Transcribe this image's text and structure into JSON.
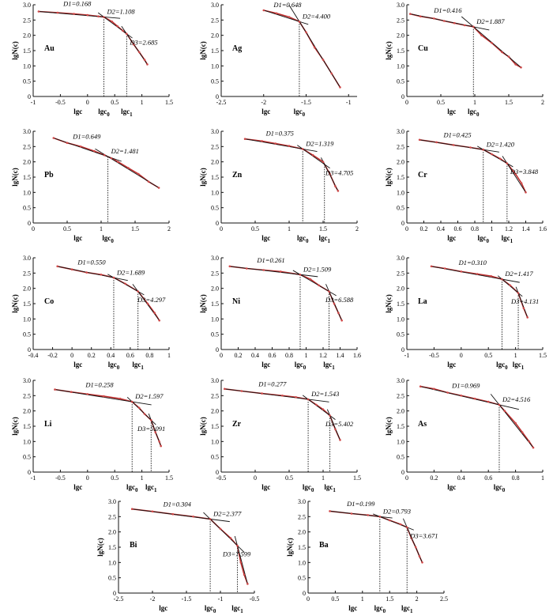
{
  "common": {
    "xlabel": "lgc",
    "ylabel": "lgN(c)",
    "x0_label": "lgc",
    "x0_sub": "0",
    "x1_label": "lgc",
    "x1_sub": "1",
    "colors": {
      "data": "#d04848",
      "fit": "#c03030",
      "segment": "#111111",
      "axis": "#111111"
    }
  },
  "chart_data": [
    {
      "type": "scatter",
      "element": "Au",
      "xlim": [
        -1,
        1.5
      ],
      "xticks": [
        "-1",
        "-0.5",
        "0",
        "0.5",
        "1",
        "1.5"
      ],
      "ylim": [
        0,
        3
      ],
      "yticks": [
        "0",
        "0.5",
        "1.0",
        "1.5",
        "2.0",
        "2.5",
        "3.0"
      ],
      "breaks": [
        0.3,
        0.72
      ],
      "D": [
        {
          "label": "D1=0.168",
          "value": 0.168
        },
        {
          "label": "D2=1.108",
          "value": 1.108
        },
        {
          "label": "D3=2.685",
          "value": 2.685
        }
      ],
      "points": [
        [
          -0.9,
          2.78
        ],
        [
          -0.55,
          2.74
        ],
        [
          -0.25,
          2.7
        ],
        [
          0.0,
          2.66
        ],
        [
          0.2,
          2.62
        ],
        [
          0.3,
          2.6
        ],
        [
          0.45,
          2.45
        ],
        [
          0.55,
          2.3
        ],
        [
          0.65,
          2.15
        ],
        [
          0.72,
          2.05
        ],
        [
          0.85,
          1.7
        ],
        [
          0.95,
          1.45
        ],
        [
          1.05,
          1.2
        ],
        [
          1.1,
          1.05
        ]
      ]
    },
    {
      "type": "scatter",
      "element": "Ag",
      "xlim": [
        -2.5,
        -0.9
      ],
      "xticks": [
        "-2.5",
        "-2",
        "-1.5",
        "-1"
      ],
      "ylim": [
        0,
        3
      ],
      "yticks": [
        "0",
        "0.5",
        "1.0",
        "1.5",
        "2.0",
        "2.5",
        "3.0"
      ],
      "breaks": [
        -1.58
      ],
      "D": [
        {
          "label": "D1=0.648",
          "value": 0.648
        },
        {
          "label": "D2=4.400",
          "value": 4.4
        }
      ],
      "points": [
        [
          -2.0,
          2.82
        ],
        [
          -1.85,
          2.72
        ],
        [
          -1.7,
          2.6
        ],
        [
          -1.58,
          2.45
        ],
        [
          -1.5,
          2.1
        ],
        [
          -1.4,
          1.6
        ],
        [
          -1.3,
          1.2
        ],
        [
          -1.2,
          0.75
        ],
        [
          -1.1,
          0.3
        ]
      ]
    },
    {
      "type": "scatter",
      "element": "Cu",
      "xlim": [
        0,
        2
      ],
      "xticks": [
        "0",
        "0.5",
        "1",
        "1.5",
        "2"
      ],
      "ylim": [
        0,
        3
      ],
      "yticks": [
        "0",
        "0.5",
        "1.0",
        "1.5",
        "2.0",
        "2.5",
        "3.0"
      ],
      "breaks": [
        0.98
      ],
      "D": [
        {
          "label": "D1=0.416",
          "value": 0.416
        },
        {
          "label": "D2=1.887",
          "value": 1.887
        }
      ],
      "points": [
        [
          0.05,
          2.7
        ],
        [
          0.2,
          2.62
        ],
        [
          0.4,
          2.55
        ],
        [
          0.55,
          2.47
        ],
        [
          0.7,
          2.4
        ],
        [
          0.85,
          2.33
        ],
        [
          0.98,
          2.28
        ],
        [
          1.1,
          2.0
        ],
        [
          1.25,
          1.75
        ],
        [
          1.4,
          1.45
        ],
        [
          1.5,
          1.3
        ],
        [
          1.6,
          1.05
        ],
        [
          1.68,
          0.95
        ]
      ]
    },
    {
      "type": "scatter",
      "element": "Pb",
      "xlim": [
        0,
        2
      ],
      "xticks": [
        "0",
        "0.5",
        "1",
        "1.5",
        "2"
      ],
      "ylim": [
        0,
        3
      ],
      "yticks": [
        "0",
        "0.5",
        "1.0",
        "1.5",
        "2.0",
        "2.5",
        "3.0"
      ],
      "breaks": [
        1.1
      ],
      "D": [
        {
          "label": "D1=0.649",
          "value": 0.649
        },
        {
          "label": "D2=1.481",
          "value": 1.481
        }
      ],
      "points": [
        [
          0.3,
          2.78
        ],
        [
          0.5,
          2.62
        ],
        [
          0.7,
          2.5
        ],
        [
          0.9,
          2.35
        ],
        [
          1.05,
          2.22
        ],
        [
          1.15,
          2.12
        ],
        [
          1.25,
          2.0
        ],
        [
          1.4,
          1.8
        ],
        [
          1.55,
          1.6
        ],
        [
          1.7,
          1.35
        ],
        [
          1.85,
          1.15
        ]
      ]
    },
    {
      "type": "scatter",
      "element": "Zn",
      "xlim": [
        0,
        2
      ],
      "xticks": [
        "0",
        "0.5",
        "1",
        "1.5",
        "2"
      ],
      "ylim": [
        0,
        3
      ],
      "yticks": [
        "0",
        "0.5",
        "1.0",
        "1.5",
        "2.0",
        "2.5",
        "3.0"
      ],
      "breaks": [
        1.2,
        1.52
      ],
      "D": [
        {
          "label": "D1=0.375",
          "value": 0.375
        },
        {
          "label": "D2=1.319",
          "value": 1.319
        },
        {
          "label": "D3=4.705",
          "value": 4.705
        }
      ],
      "points": [
        [
          0.35,
          2.75
        ],
        [
          0.6,
          2.68
        ],
        [
          0.8,
          2.6
        ],
        [
          1.0,
          2.52
        ],
        [
          1.2,
          2.42
        ],
        [
          1.35,
          2.22
        ],
        [
          1.5,
          2.0
        ],
        [
          1.6,
          1.6
        ],
        [
          1.68,
          1.2
        ],
        [
          1.72,
          1.05
        ]
      ]
    },
    {
      "type": "scatter",
      "element": "Cr",
      "xlim": [
        0,
        1.6
      ],
      "xticks": [
        "0",
        "0.2",
        "0.4",
        "0.6",
        "0.8",
        "1",
        "1.2",
        "1.4",
        "1.6"
      ],
      "ylim": [
        0,
        3
      ],
      "yticks": [
        "0",
        "0.5",
        "1.0",
        "1.5",
        "2.0",
        "2.5",
        "3.0"
      ],
      "breaks": [
        0.9,
        1.18
      ],
      "D": [
        {
          "label": "D1=0.425",
          "value": 0.425
        },
        {
          "label": "D2=1.420",
          "value": 1.42
        },
        {
          "label": "D3=3.848",
          "value": 3.848
        }
      ],
      "points": [
        [
          0.15,
          2.72
        ],
        [
          0.35,
          2.64
        ],
        [
          0.55,
          2.55
        ],
        [
          0.75,
          2.47
        ],
        [
          0.9,
          2.4
        ],
        [
          1.0,
          2.25
        ],
        [
          1.1,
          2.1
        ],
        [
          1.18,
          1.95
        ],
        [
          1.28,
          1.6
        ],
        [
          1.35,
          1.3
        ],
        [
          1.4,
          1.0
        ]
      ]
    },
    {
      "type": "scatter",
      "element": "Co",
      "xlim": [
        -0.4,
        1
      ],
      "xticks": [
        "-0.4",
        "-0.2",
        "0",
        "0.2",
        "0.4",
        "0.6",
        "0.8",
        "1"
      ],
      "ylim": [
        0,
        3
      ],
      "yticks": [
        "0",
        "0.5",
        "1.0",
        "1.5",
        "2.0",
        "2.5",
        "3.0"
      ],
      "breaks": [
        0.43,
        0.68
      ],
      "D": [
        {
          "label": "D1=0.550",
          "value": 0.55
        },
        {
          "label": "D2=1.689",
          "value": 1.689
        },
        {
          "label": "D3=4.297",
          "value": 4.297
        }
      ],
      "points": [
        [
          -0.15,
          2.72
        ],
        [
          0.0,
          2.62
        ],
        [
          0.15,
          2.52
        ],
        [
          0.3,
          2.45
        ],
        [
          0.43,
          2.35
        ],
        [
          0.55,
          2.15
        ],
        [
          0.68,
          1.9
        ],
        [
          0.78,
          1.5
        ],
        [
          0.85,
          1.2
        ],
        [
          0.9,
          0.95
        ]
      ]
    },
    {
      "type": "scatter",
      "element": "Ni",
      "xlim": [
        0,
        1.6
      ],
      "xticks": [
        "0",
        "0.2",
        "0.4",
        "0.6",
        "0.8",
        "1",
        "1.2",
        "1.4",
        "1.6"
      ],
      "ylim": [
        0,
        3
      ],
      "yticks": [
        "0",
        "0.5",
        "1.0",
        "1.5",
        "2.0",
        "2.5",
        "3.0"
      ],
      "breaks": [
        0.93,
        1.27
      ],
      "D": [
        {
          "label": "D1=0.261",
          "value": 0.261
        },
        {
          "label": "D2=1.509",
          "value": 1.509
        },
        {
          "label": "D3=6.588",
          "value": 6.588
        }
      ],
      "points": [
        [
          0.1,
          2.72
        ],
        [
          0.3,
          2.65
        ],
        [
          0.5,
          2.6
        ],
        [
          0.7,
          2.55
        ],
        [
          0.93,
          2.45
        ],
        [
          1.05,
          2.3
        ],
        [
          1.15,
          2.1
        ],
        [
          1.27,
          1.9
        ],
        [
          1.33,
          1.5
        ],
        [
          1.38,
          1.2
        ],
        [
          1.42,
          0.95
        ]
      ]
    },
    {
      "type": "scatter",
      "element": "La",
      "xlim": [
        -1,
        1.5
      ],
      "xticks": [
        "-1",
        "-0.5",
        "0",
        "0.5",
        "1",
        "1.5"
      ],
      "ylim": [
        0,
        3
      ],
      "yticks": [
        "0",
        "0.5",
        "1.0",
        "1.5",
        "2.0",
        "2.5",
        "3.0"
      ],
      "breaks": [
        0.75,
        1.05
      ],
      "D": [
        {
          "label": "D1=0.310",
          "value": 0.31
        },
        {
          "label": "D2=1.417",
          "value": 1.417
        },
        {
          "label": "D3=4.131",
          "value": 4.131
        }
      ],
      "points": [
        [
          -0.55,
          2.72
        ],
        [
          -0.3,
          2.65
        ],
        [
          0.0,
          2.55
        ],
        [
          0.3,
          2.47
        ],
        [
          0.55,
          2.4
        ],
        [
          0.75,
          2.3
        ],
        [
          0.9,
          2.1
        ],
        [
          1.05,
          1.85
        ],
        [
          1.15,
          1.35
        ],
        [
          1.22,
          1.05
        ]
      ]
    },
    {
      "type": "scatter",
      "element": "Li",
      "xlim": [
        -1,
        1.5
      ],
      "xticks": [
        "-1",
        "-0.5",
        "0",
        "0.5",
        "1",
        "1.5"
      ],
      "ylim": [
        0,
        3
      ],
      "yticks": [
        "0",
        "0.5",
        "1.0",
        "1.5",
        "2.0",
        "2.5",
        "3.0"
      ],
      "breaks": [
        0.82,
        1.17
      ],
      "D": [
        {
          "label": "D1=0.258",
          "value": 0.258
        },
        {
          "label": "D2=1.597",
          "value": 1.597
        },
        {
          "label": "D3=5.091",
          "value": 5.091
        }
      ],
      "points": [
        [
          -0.6,
          2.7
        ],
        [
          -0.3,
          2.62
        ],
        [
          0.0,
          2.55
        ],
        [
          0.3,
          2.48
        ],
        [
          0.6,
          2.4
        ],
        [
          0.82,
          2.3
        ],
        [
          0.95,
          2.1
        ],
        [
          1.05,
          1.9
        ],
        [
          1.17,
          1.7
        ],
        [
          1.25,
          1.3
        ],
        [
          1.32,
          1.0
        ],
        [
          1.35,
          0.85
        ]
      ]
    },
    {
      "type": "scatter",
      "element": "Zr",
      "xlim": [
        -0.5,
        1.5
      ],
      "xticks": [
        "-0.5",
        "0",
        "0.5",
        "1",
        "1.5"
      ],
      "ylim": [
        0,
        3
      ],
      "yticks": [
        "0",
        "0.5",
        "1.0",
        "1.5",
        "2.0",
        "2.5",
        "3.0"
      ],
      "breaks": [
        0.78,
        1.1
      ],
      "D": [
        {
          "label": "D1=0.277",
          "value": 0.277
        },
        {
          "label": "D2=1.543",
          "value": 1.543
        },
        {
          "label": "D3=5.402",
          "value": 5.402
        }
      ],
      "points": [
        [
          -0.45,
          2.72
        ],
        [
          -0.2,
          2.65
        ],
        [
          0.1,
          2.57
        ],
        [
          0.4,
          2.5
        ],
        [
          0.6,
          2.45
        ],
        [
          0.78,
          2.38
        ],
        [
          0.9,
          2.2
        ],
        [
          1.0,
          2.05
        ],
        [
          1.1,
          1.85
        ],
        [
          1.18,
          1.4
        ],
        [
          1.25,
          1.05
        ]
      ]
    },
    {
      "type": "scatter",
      "element": "As",
      "xlim": [
        0,
        1
      ],
      "xticks": [
        "0",
        "0.2",
        "0.4",
        "0.6",
        "0.8",
        "1"
      ],
      "ylim": [
        0,
        3
      ],
      "yticks": [
        "0",
        "0.5",
        "1.0",
        "1.5",
        "2.0",
        "2.5",
        "3.0"
      ],
      "breaks": [
        0.68
      ],
      "D": [
        {
          "label": "D1=0.969",
          "value": 0.969
        },
        {
          "label": "D2=4.516",
          "value": 4.516
        }
      ],
      "points": [
        [
          0.1,
          2.8
        ],
        [
          0.2,
          2.72
        ],
        [
          0.3,
          2.6
        ],
        [
          0.4,
          2.5
        ],
        [
          0.5,
          2.4
        ],
        [
          0.6,
          2.3
        ],
        [
          0.68,
          2.2
        ],
        [
          0.72,
          2.0
        ],
        [
          0.8,
          1.6
        ],
        [
          0.85,
          1.3
        ],
        [
          0.9,
          1.0
        ],
        [
          0.93,
          0.8
        ]
      ]
    },
    {
      "type": "scatter",
      "element": "Bi",
      "xlim": [
        -2.5,
        -0.5
      ],
      "xticks": [
        "-2.5",
        "-2",
        "-1.5",
        "-1",
        "-0.5"
      ],
      "ylim": [
        0,
        3
      ],
      "yticks": [
        "0",
        "0.5",
        "1.0",
        "1.5",
        "2.0",
        "2.5",
        "3.0"
      ],
      "breaks": [
        -1.15,
        -0.75
      ],
      "D": [
        {
          "label": "D1=0.304",
          "value": 0.304
        },
        {
          "label": "D2=2.377",
          "value": 2.377
        },
        {
          "label": "D3=7.599",
          "value": 7.599
        }
      ],
      "points": [
        [
          -2.3,
          2.75
        ],
        [
          -2.0,
          2.67
        ],
        [
          -1.7,
          2.58
        ],
        [
          -1.4,
          2.5
        ],
        [
          -1.15,
          2.42
        ],
        [
          -1.0,
          2.1
        ],
        [
          -0.85,
          1.8
        ],
        [
          -0.75,
          1.55
        ],
        [
          -0.7,
          1.0
        ],
        [
          -0.65,
          0.6
        ],
        [
          -0.6,
          0.3
        ]
      ]
    },
    {
      "type": "scatter",
      "element": "Ba",
      "xlim": [
        0,
        2.5
      ],
      "xticks": [
        "0",
        "0.5",
        "1",
        "1.5",
        "2",
        "2.5"
      ],
      "ylim": [
        0,
        3
      ],
      "yticks": [
        "0",
        "0.5",
        "1.0",
        "1.5",
        "2.0",
        "2.5",
        "3.0"
      ],
      "breaks": [
        1.32,
        1.82
      ],
      "D": [
        {
          "label": "D1=0.199",
          "value": 0.199
        },
        {
          "label": "D2=0.793",
          "value": 0.793
        },
        {
          "label": "D3=3.671",
          "value": 3.671
        }
      ],
      "points": [
        [
          0.4,
          2.68
        ],
        [
          0.8,
          2.6
        ],
        [
          1.1,
          2.55
        ],
        [
          1.32,
          2.5
        ],
        [
          1.5,
          2.38
        ],
        [
          1.7,
          2.25
        ],
        [
          1.82,
          2.15
        ],
        [
          1.9,
          1.8
        ],
        [
          1.98,
          1.5
        ],
        [
          2.05,
          1.2
        ],
        [
          2.1,
          1.0
        ]
      ]
    }
  ]
}
